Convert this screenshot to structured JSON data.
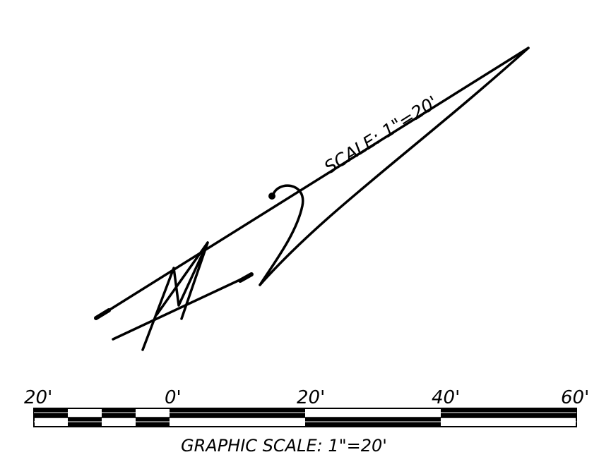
{
  "north_arrow": {
    "scale_text": "SCALE: 1\"=20'"
  },
  "graphic_scale": {
    "tick_labels": [
      "20'",
      "0'",
      "20'",
      "40'",
      "60'"
    ],
    "caption": "GRAPHIC SCALE: 1\"=20'"
  },
  "colors": {
    "line": "#000000",
    "background": "#ffffff"
  }
}
